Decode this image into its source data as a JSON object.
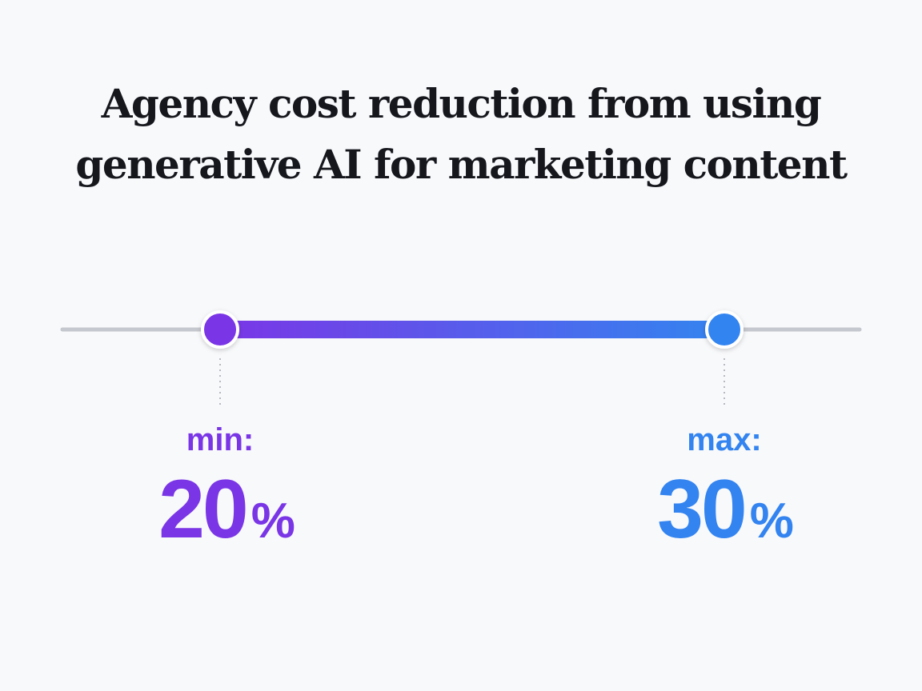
{
  "chart_data": {
    "type": "range",
    "title_lines": [
      "Agency cost reduction from using",
      "generative AI for marketing content"
    ],
    "unit": "%",
    "min": {
      "label": "min:",
      "value": 20,
      "color": "#7a36e6"
    },
    "max": {
      "label": "max:",
      "value": 30,
      "color": "#3384f0"
    },
    "track_color": "#c5c8ce"
  }
}
